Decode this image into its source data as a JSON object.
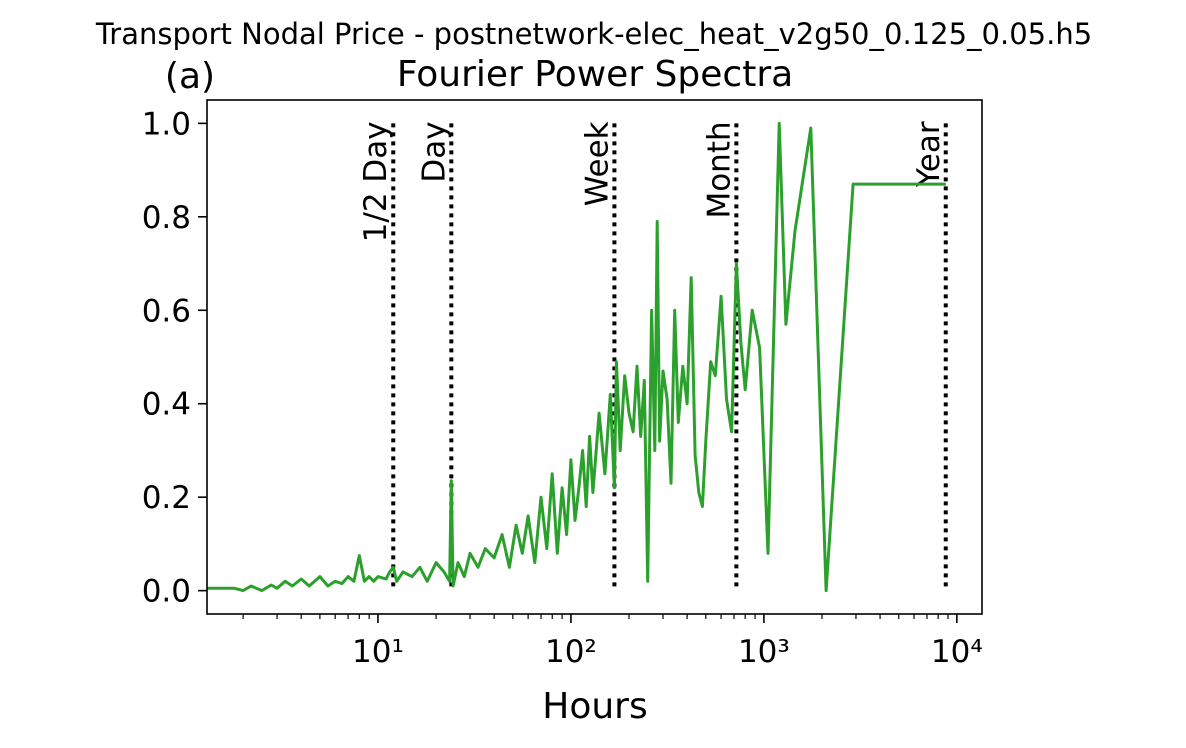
{
  "figure": {
    "suptitle": "Transport Nodal Price - postnetwork-elec_heat_v2g50_0.125_0.05.h5",
    "panel_label": "(a)"
  },
  "chart_data": {
    "type": "line",
    "title": "Fourier Power Spectra",
    "xlabel": "Hours",
    "ylabel": "",
    "xscale": "log",
    "xlim": [
      1.3,
      13500
    ],
    "ylim": [
      -0.05,
      1.05
    ],
    "grid": false,
    "xticks": [
      {
        "value": 10,
        "label": "10¹"
      },
      {
        "value": 100,
        "label": "10²"
      },
      {
        "value": 1000,
        "label": "10³"
      },
      {
        "value": 10000,
        "label": "10⁴"
      }
    ],
    "yticks": [
      0.0,
      0.2,
      0.4,
      0.6,
      0.8,
      1.0
    ],
    "ytick_labels": [
      "0.0",
      "0.2",
      "0.4",
      "0.6",
      "0.8",
      "1.0"
    ],
    "line_color": "#2ca02c",
    "markers": [
      {
        "label": "1/2 Day",
        "x": 12,
        "color": "#000000"
      },
      {
        "label": "Day",
        "x": 24,
        "color": "#000000"
      },
      {
        "label": "Week",
        "x": 168,
        "color": "#000000"
      },
      {
        "label": "Month",
        "x": 720,
        "color": "#000000"
      },
      {
        "label": "Year",
        "x": 8760,
        "color": "#000000"
      }
    ],
    "series": [
      {
        "values_x": [
          1.3,
          1.8,
          2.0,
          2.2,
          2.5,
          2.8,
          3.0,
          3.3,
          3.6,
          4.0,
          4.4,
          5.0,
          5.5,
          6.0,
          6.5,
          7.0,
          7.5,
          8.0,
          8.5,
          9.0,
          9.5,
          10,
          11,
          11.5,
          12,
          12.5,
          13.5,
          15,
          16.5,
          18,
          20,
          22,
          23.5,
          24,
          24.5,
          26,
          28,
          30,
          33,
          36,
          40,
          44,
          48,
          52,
          56,
          60,
          65,
          70,
          75,
          80,
          85,
          90,
          95,
          100,
          105,
          110,
          115,
          120,
          125,
          130,
          140,
          150,
          160,
          168,
          172,
          180,
          190,
          200,
          210,
          220,
          230,
          240,
          250,
          262,
          272,
          280,
          288,
          300,
          315,
          330,
          345,
          360,
          380,
          400,
          420,
          440,
          460,
          480,
          500,
          530,
          560,
          600,
          640,
          680,
          720,
          760,
          800,
          870,
          950,
          1050,
          1200,
          1300,
          1450,
          1750,
          2100,
          2900,
          4400,
          8760
        ],
        "values_y": [
          0.005,
          0.005,
          0.0,
          0.01,
          0.0,
          0.012,
          0.005,
          0.02,
          0.01,
          0.025,
          0.01,
          0.03,
          0.01,
          0.02,
          0.015,
          0.03,
          0.02,
          0.075,
          0.02,
          0.03,
          0.02,
          0.03,
          0.025,
          0.04,
          0.05,
          0.02,
          0.04,
          0.03,
          0.05,
          0.02,
          0.06,
          0.04,
          0.02,
          0.235,
          0.01,
          0.06,
          0.03,
          0.08,
          0.05,
          0.09,
          0.07,
          0.12,
          0.05,
          0.14,
          0.08,
          0.16,
          0.06,
          0.2,
          0.09,
          0.25,
          0.08,
          0.22,
          0.12,
          0.28,
          0.15,
          0.22,
          0.3,
          0.18,
          0.33,
          0.21,
          0.38,
          0.25,
          0.42,
          0.22,
          0.49,
          0.3,
          0.46,
          0.38,
          0.34,
          0.48,
          0.33,
          0.45,
          0.02,
          0.6,
          0.3,
          0.79,
          0.32,
          0.47,
          0.41,
          0.23,
          0.6,
          0.36,
          0.48,
          0.4,
          0.67,
          0.29,
          0.21,
          0.18,
          0.32,
          0.49,
          0.46,
          0.63,
          0.41,
          0.34,
          0.7,
          0.53,
          0.43,
          0.6,
          0.52,
          0.08,
          1.0,
          0.57,
          0.77,
          0.99,
          0.0,
          0.87,
          0.87,
          0.87
        ]
      }
    ]
  }
}
